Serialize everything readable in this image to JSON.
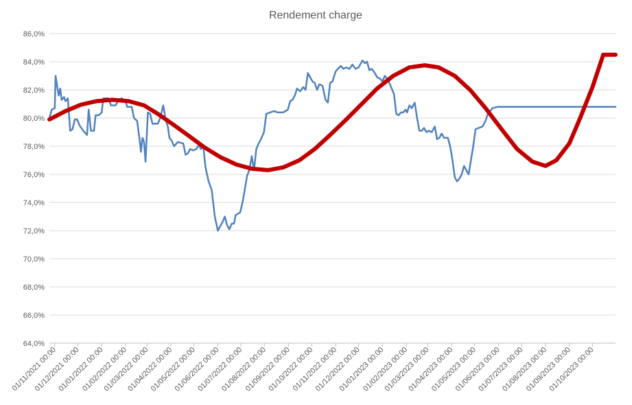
{
  "chart_data": {
    "type": "line",
    "title": "Rendement charge",
    "xlabel": "",
    "ylabel": "",
    "ylim": [
      64.0,
      86.0
    ],
    "yticks": [
      "64,0%",
      "66,0%",
      "68,0%",
      "70,0%",
      "72,0%",
      "74,0%",
      "76,0%",
      "78,0%",
      "80,0%",
      "82,0%",
      "84,0%",
      "86,0%"
    ],
    "xlim": [
      "2021-10-25",
      "2023-10-31"
    ],
    "xticks": [
      {
        "date": "2021-11-01",
        "label": "01/11/2021 00:00"
      },
      {
        "date": "2021-12-01",
        "label": "01/12/2021 00:00"
      },
      {
        "date": "2022-01-01",
        "label": "01/01/2022 00:00"
      },
      {
        "date": "2022-02-01",
        "label": "01/02/2022 00:00"
      },
      {
        "date": "2022-03-01",
        "label": "01/03/2022 00:00"
      },
      {
        "date": "2022-04-01",
        "label": "01/04/2022 00:00"
      },
      {
        "date": "2022-05-01",
        "label": "01/05/2022 00:00"
      },
      {
        "date": "2022-06-01",
        "label": "01/06/2022 00:00"
      },
      {
        "date": "2022-07-01",
        "label": "01/07/2022 00:00"
      },
      {
        "date": "2022-08-01",
        "label": "01/08/2022 00:00"
      },
      {
        "date": "2022-09-01",
        "label": "01/09/2022 00:00"
      },
      {
        "date": "2022-10-01",
        "label": "01/10/2022 00:00"
      },
      {
        "date": "2022-11-01",
        "label": "01/11/2022 00:00"
      },
      {
        "date": "2022-12-01",
        "label": "01/12/2022 00:00"
      },
      {
        "date": "2023-01-01",
        "label": "01/01/2023 00:00"
      },
      {
        "date": "2023-02-01",
        "label": "01/02/2023 00:00"
      },
      {
        "date": "2023-03-01",
        "label": "01/03/2023 00:00"
      },
      {
        "date": "2023-04-01",
        "label": "01/04/2023 00:00"
      },
      {
        "date": "2023-05-01",
        "label": "01/05/2023 00:00"
      },
      {
        "date": "2023-06-01",
        "label": "01/06/2023 00:00"
      },
      {
        "date": "2023-07-01",
        "label": "01/07/2023 00:00"
      },
      {
        "date": "2023-08-01",
        "label": "01/08/2023 00:00"
      },
      {
        "date": "2023-09-01",
        "label": "01/09/2023 00:00"
      },
      {
        "date": "2023-10-01",
        "label": "01/10/2023 00:00"
      }
    ],
    "grid": true,
    "series": [
      {
        "color": "#4f81bd",
        "data": [
          [
            "2021-10-25",
            80.0
          ],
          [
            "2021-10-28",
            80.6
          ],
          [
            "2021-11-01",
            80.7
          ],
          [
            "2021-11-02",
            83.0
          ],
          [
            "2021-11-06",
            81.6
          ],
          [
            "2021-11-08",
            82.1
          ],
          [
            "2021-11-10",
            81.3
          ],
          [
            "2021-11-13",
            81.5
          ],
          [
            "2021-11-15",
            81.2
          ],
          [
            "2021-11-18",
            81.4
          ],
          [
            "2021-11-21",
            79.1
          ],
          [
            "2021-11-24",
            79.2
          ],
          [
            "2021-11-27",
            79.9
          ],
          [
            "2021-11-30",
            79.9
          ],
          [
            "2021-12-03",
            79.5
          ],
          [
            "2021-12-08",
            79.1
          ],
          [
            "2021-12-13",
            78.8
          ],
          [
            "2021-12-15",
            80.6
          ],
          [
            "2021-12-18",
            79.1
          ],
          [
            "2021-12-22",
            79.1
          ],
          [
            "2021-12-24",
            80.2
          ],
          [
            "2021-12-28",
            80.2
          ],
          [
            "2022-01-01",
            80.4
          ],
          [
            "2022-01-03",
            81.4
          ],
          [
            "2022-01-10",
            81.4
          ],
          [
            "2022-01-13",
            80.9
          ],
          [
            "2022-01-19",
            80.9
          ],
          [
            "2022-01-23",
            81.3
          ],
          [
            "2022-01-27",
            81.4
          ],
          [
            "2022-02-01",
            81.2
          ],
          [
            "2022-02-03",
            80.8
          ],
          [
            "2022-02-09",
            80.8
          ],
          [
            "2022-02-12",
            80.0
          ],
          [
            "2022-02-16",
            79.8
          ],
          [
            "2022-02-19",
            78.6
          ],
          [
            "2022-02-21",
            77.6
          ],
          [
            "2022-02-23",
            78.6
          ],
          [
            "2022-02-25",
            78.3
          ],
          [
            "2022-02-27",
            76.9
          ],
          [
            "2022-03-02",
            80.4
          ],
          [
            "2022-03-05",
            80.3
          ],
          [
            "2022-03-08",
            79.6
          ],
          [
            "2022-03-15",
            79.6
          ],
          [
            "2022-03-18",
            80.0
          ],
          [
            "2022-03-22",
            80.9
          ],
          [
            "2022-03-25",
            79.9
          ],
          [
            "2022-03-28",
            79.4
          ],
          [
            "2022-03-30",
            78.6
          ],
          [
            "2022-04-02",
            78.4
          ],
          [
            "2022-04-05",
            78.0
          ],
          [
            "2022-04-10",
            78.3
          ],
          [
            "2022-04-17",
            78.2
          ],
          [
            "2022-04-20",
            77.4
          ],
          [
            "2022-04-23",
            77.5
          ],
          [
            "2022-04-26",
            77.8
          ],
          [
            "2022-04-30",
            77.7
          ],
          [
            "2022-05-04",
            77.8
          ],
          [
            "2022-05-07",
            78.1
          ],
          [
            "2022-05-10",
            77.8
          ],
          [
            "2022-05-13",
            78.0
          ],
          [
            "2022-05-16",
            76.5
          ],
          [
            "2022-05-20",
            75.5
          ],
          [
            "2022-05-24",
            74.9
          ],
          [
            "2022-05-28",
            73.0
          ],
          [
            "2022-06-01",
            72.0
          ],
          [
            "2022-06-04",
            72.3
          ],
          [
            "2022-06-07",
            72.6
          ],
          [
            "2022-06-10",
            73.0
          ],
          [
            "2022-06-13",
            72.4
          ],
          [
            "2022-06-16",
            72.1
          ],
          [
            "2022-06-19",
            72.5
          ],
          [
            "2022-06-22",
            72.5
          ],
          [
            "2022-06-24",
            73.1
          ],
          [
            "2022-06-27",
            73.2
          ],
          [
            "2022-06-30",
            73.3
          ],
          [
            "2022-07-03",
            74.0
          ],
          [
            "2022-07-06",
            74.9
          ],
          [
            "2022-07-09",
            75.9
          ],
          [
            "2022-07-12",
            76.3
          ],
          [
            "2022-07-15",
            77.3
          ],
          [
            "2022-07-18",
            76.3
          ],
          [
            "2022-07-21",
            77.8
          ],
          [
            "2022-07-24",
            78.2
          ],
          [
            "2022-07-27",
            78.5
          ],
          [
            "2022-07-31",
            79.0
          ],
          [
            "2022-08-03",
            80.3
          ],
          [
            "2022-08-08",
            80.4
          ],
          [
            "2022-08-13",
            80.5
          ],
          [
            "2022-08-18",
            80.4
          ],
          [
            "2022-08-25",
            80.4
          ],
          [
            "2022-08-31",
            80.6
          ],
          [
            "2022-09-03",
            81.2
          ],
          [
            "2022-09-06",
            81.3
          ],
          [
            "2022-09-09",
            81.6
          ],
          [
            "2022-09-12",
            82.1
          ],
          [
            "2022-09-16",
            81.9
          ],
          [
            "2022-09-20",
            82.2
          ],
          [
            "2022-09-23",
            82.0
          ],
          [
            "2022-09-26",
            83.2
          ],
          [
            "2022-09-29",
            82.9
          ],
          [
            "2022-10-02",
            82.6
          ],
          [
            "2022-10-05",
            82.5
          ],
          [
            "2022-10-08",
            82.0
          ],
          [
            "2022-10-11",
            82.4
          ],
          [
            "2022-10-15",
            82.3
          ],
          [
            "2022-10-19",
            81.3
          ],
          [
            "2022-10-22",
            81.1
          ],
          [
            "2022-10-25",
            82.5
          ],
          [
            "2022-10-28",
            82.6
          ],
          [
            "2022-11-01",
            83.3
          ],
          [
            "2022-11-04",
            83.5
          ],
          [
            "2022-11-08",
            83.7
          ],
          [
            "2022-11-11",
            83.5
          ],
          [
            "2022-11-15",
            83.6
          ],
          [
            "2022-11-19",
            83.5
          ],
          [
            "2022-11-23",
            83.8
          ],
          [
            "2022-11-27",
            83.5
          ],
          [
            "2022-12-01",
            83.6
          ],
          [
            "2022-12-06",
            84.1
          ],
          [
            "2022-12-09",
            83.9
          ],
          [
            "2022-12-12",
            84.0
          ],
          [
            "2022-12-15",
            83.4
          ],
          [
            "2022-12-18",
            83.5
          ],
          [
            "2022-12-22",
            83.2
          ],
          [
            "2022-12-25",
            82.9
          ],
          [
            "2022-12-29",
            82.8
          ],
          [
            "2023-01-01",
            82.6
          ],
          [
            "2023-01-04",
            83.0
          ],
          [
            "2023-01-07",
            82.8
          ],
          [
            "2023-01-10",
            82.5
          ],
          [
            "2023-01-13",
            82.1
          ],
          [
            "2023-01-16",
            81.7
          ],
          [
            "2023-01-19",
            80.3
          ],
          [
            "2023-01-22",
            80.2
          ],
          [
            "2023-01-25",
            80.4
          ],
          [
            "2023-01-28",
            80.4
          ],
          [
            "2023-01-31",
            80.6
          ],
          [
            "2023-02-02",
            80.4
          ],
          [
            "2023-02-05",
            80.9
          ],
          [
            "2023-02-08",
            80.7
          ],
          [
            "2023-02-12",
            81.1
          ],
          [
            "2023-02-15",
            80.0
          ],
          [
            "2023-02-18",
            79.1
          ],
          [
            "2023-02-21",
            79.1
          ],
          [
            "2023-02-24",
            79.3
          ],
          [
            "2023-02-27",
            79.0
          ],
          [
            "2023-03-02",
            79.1
          ],
          [
            "2023-03-06",
            79.0
          ],
          [
            "2023-03-10",
            79.4
          ],
          [
            "2023-03-13",
            78.5
          ],
          [
            "2023-03-16",
            78.6
          ],
          [
            "2023-03-19",
            78.9
          ],
          [
            "2023-03-22",
            78.6
          ],
          [
            "2023-03-27",
            78.6
          ],
          [
            "2023-03-30",
            78.0
          ],
          [
            "2023-04-02",
            77.0
          ],
          [
            "2023-04-05",
            75.8
          ],
          [
            "2023-04-08",
            75.5
          ],
          [
            "2023-04-11",
            75.7
          ],
          [
            "2023-04-14",
            76.0
          ],
          [
            "2023-04-17",
            76.6
          ],
          [
            "2023-04-20",
            76.3
          ],
          [
            "2023-04-23",
            76.0
          ],
          [
            "2023-04-26",
            77.0
          ],
          [
            "2023-04-29",
            78.0
          ],
          [
            "2023-05-02",
            79.2
          ],
          [
            "2023-05-06",
            79.3
          ],
          [
            "2023-05-11",
            79.4
          ],
          [
            "2023-05-15",
            79.8
          ],
          [
            "2023-05-18",
            80.3
          ],
          [
            "2023-05-21",
            80.5
          ],
          [
            "2023-05-24",
            80.7
          ],
          [
            "2023-05-31",
            80.8
          ],
          [
            "2023-10-31",
            80.8
          ]
        ]
      },
      {
        "color": "#c00000",
        "data": [
          [
            "2021-10-25",
            79.9
          ],
          [
            "2021-11-15",
            80.5
          ],
          [
            "2021-12-05",
            80.95
          ],
          [
            "2021-12-25",
            81.2
          ],
          [
            "2022-01-15",
            81.3
          ],
          [
            "2022-02-05",
            81.2
          ],
          [
            "2022-02-25",
            80.9
          ],
          [
            "2022-03-15",
            80.3
          ],
          [
            "2022-04-05",
            79.5
          ],
          [
            "2022-04-25",
            78.7
          ],
          [
            "2022-05-15",
            77.9
          ],
          [
            "2022-06-05",
            77.2
          ],
          [
            "2022-06-25",
            76.7
          ],
          [
            "2022-07-15",
            76.4
          ],
          [
            "2022-08-05",
            76.3
          ],
          [
            "2022-08-25",
            76.5
          ],
          [
            "2022-09-15",
            77.0
          ],
          [
            "2022-10-05",
            77.8
          ],
          [
            "2022-10-25",
            78.8
          ],
          [
            "2022-11-15",
            79.9
          ],
          [
            "2022-12-05",
            81.0
          ],
          [
            "2022-12-25",
            82.1
          ],
          [
            "2023-01-15",
            83.0
          ],
          [
            "2023-02-05",
            83.6
          ],
          [
            "2023-02-25",
            83.75
          ],
          [
            "2023-03-15",
            83.6
          ],
          [
            "2023-04-05",
            83.0
          ],
          [
            "2023-04-25",
            82.0
          ],
          [
            "2023-05-15",
            80.7
          ],
          [
            "2023-06-05",
            79.2
          ],
          [
            "2023-06-25",
            77.8
          ],
          [
            "2023-07-15",
            76.9
          ],
          [
            "2023-08-01",
            76.6
          ],
          [
            "2023-08-15",
            77.0
          ],
          [
            "2023-09-01",
            78.2
          ],
          [
            "2023-09-15",
            80.0
          ],
          [
            "2023-10-01",
            82.2
          ],
          [
            "2023-10-15",
            84.5
          ],
          [
            "2023-10-31",
            84.5
          ]
        ]
      }
    ]
  }
}
